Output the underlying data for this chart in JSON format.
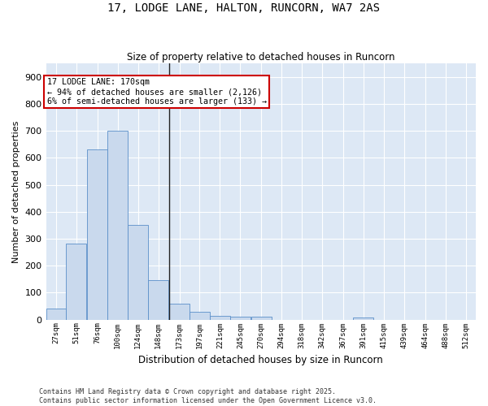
{
  "title_line1": "17, LODGE LANE, HALTON, RUNCORN, WA7 2AS",
  "title_line2": "Size of property relative to detached houses in Runcorn",
  "xlabel": "Distribution of detached houses by size in Runcorn",
  "ylabel": "Number of detached properties",
  "footnote": "Contains HM Land Registry data © Crown copyright and database right 2025.\nContains public sector information licensed under the Open Government Licence v3.0.",
  "bar_color": "#c9d9ed",
  "bar_edge_color": "#5b8fc9",
  "background_color": "#dde8f5",
  "annotation_box_text": "17 LODGE LANE: 170sqm\n← 94% of detached houses are smaller (2,126)\n6% of semi-detached houses are larger (133) →",
  "annotation_box_color": "#cc0000",
  "property_line_x": 173,
  "categories": [
    "27sqm",
    "51sqm",
    "76sqm",
    "100sqm",
    "124sqm",
    "148sqm",
    "173sqm",
    "197sqm",
    "221sqm",
    "245sqm",
    "270sqm",
    "294sqm",
    "318sqm",
    "342sqm",
    "367sqm",
    "391sqm",
    "415sqm",
    "439sqm",
    "464sqm",
    "488sqm",
    "512sqm"
  ],
  "bin_edges": [
    27,
    51,
    76,
    100,
    124,
    148,
    173,
    197,
    221,
    245,
    270,
    294,
    318,
    342,
    367,
    391,
    415,
    439,
    464,
    488,
    512
  ],
  "bin_width": 24,
  "values": [
    40,
    283,
    630,
    700,
    350,
    145,
    60,
    28,
    15,
    10,
    10,
    0,
    0,
    0,
    0,
    8,
    0,
    0,
    0,
    0,
    0
  ],
  "ylim": [
    0,
    950
  ],
  "yticks": [
    0,
    100,
    200,
    300,
    400,
    500,
    600,
    700,
    800,
    900
  ],
  "fig_width": 6.0,
  "fig_height": 5.0,
  "dpi": 100
}
